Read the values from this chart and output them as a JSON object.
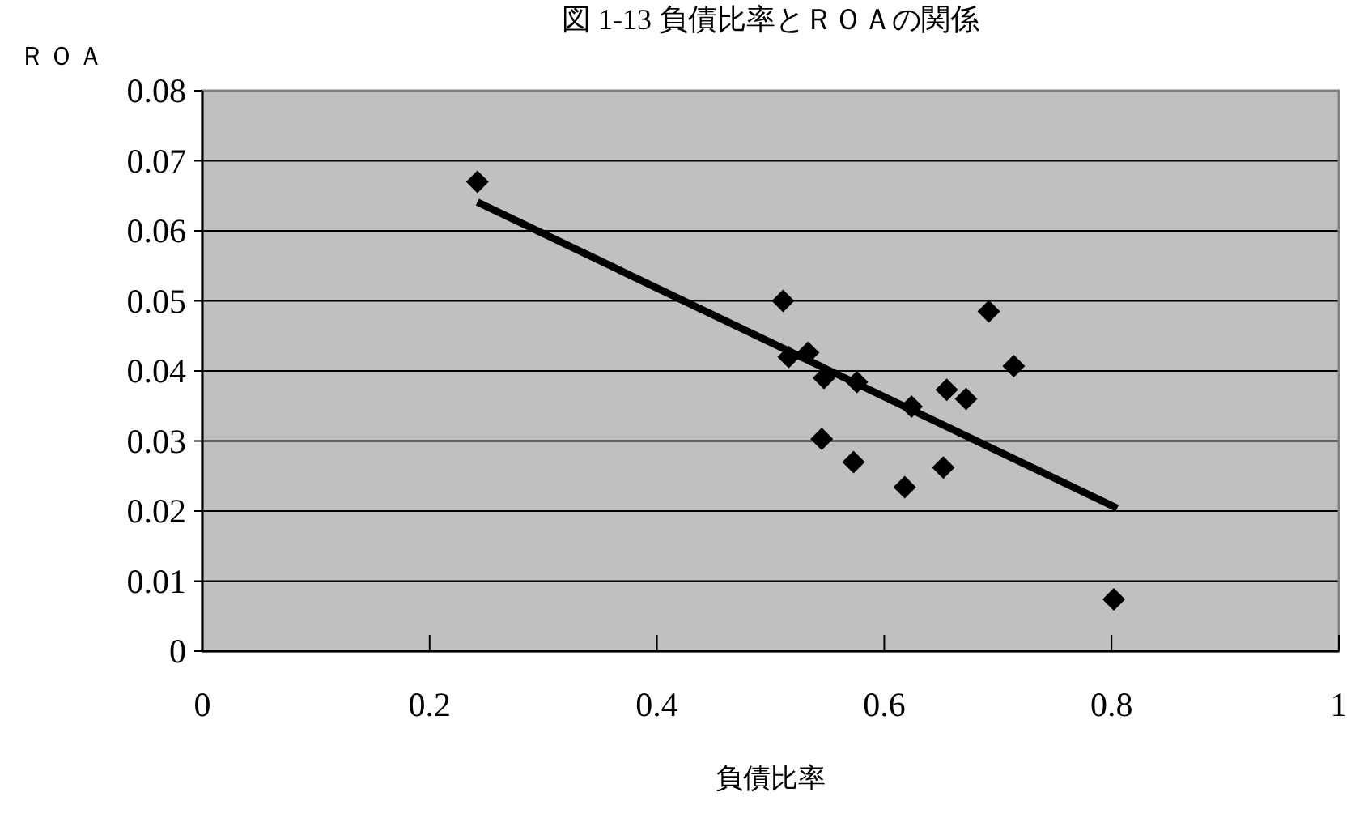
{
  "chart_data": {
    "type": "scatter",
    "title": "図 1-13 負債比率とＲＯＡの関係",
    "xlabel": "負債比率",
    "ylabel": "ＲＯＡ",
    "xlim": [
      0,
      1
    ],
    "ylim": [
      0,
      0.08
    ],
    "xticks": [
      0,
      0.2,
      0.4,
      0.6,
      0.8,
      1
    ],
    "yticks": [
      0,
      0.01,
      0.02,
      0.03,
      0.04,
      0.05,
      0.06,
      0.07,
      0.08
    ],
    "grid": "y",
    "marker": "diamond",
    "series": [
      {
        "type": "scatter",
        "color": "#000000",
        "x": [
          0.242,
          0.511,
          0.516,
          0.533,
          0.547,
          0.545,
          0.576,
          0.573,
          0.624,
          0.618,
          0.655,
          0.652,
          0.672,
          0.692,
          0.714,
          0.802
        ],
        "values": [
          0.067,
          0.05,
          0.042,
          0.0426,
          0.039,
          0.0303,
          0.0384,
          0.027,
          0.0349,
          0.0234,
          0.0373,
          0.0262,
          0.036,
          0.0485,
          0.0407,
          0.0074
        ]
      },
      {
        "type": "line",
        "color": "#000000",
        "marker": "none",
        "x": [
          0.242,
          0.805
        ],
        "values": [
          0.0641,
          0.0204
        ]
      }
    ]
  }
}
